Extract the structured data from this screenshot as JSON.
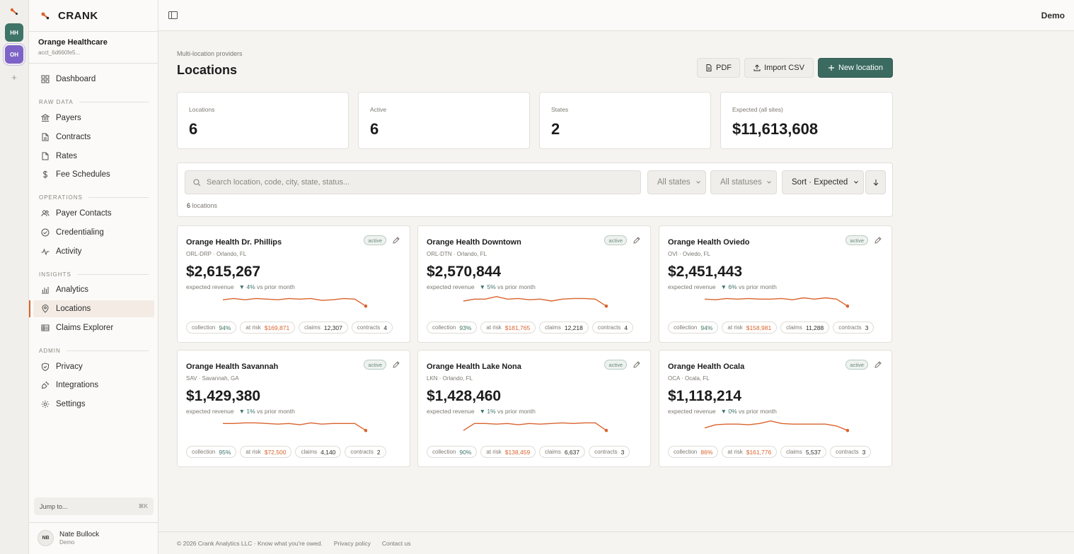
{
  "app": {
    "name": "CRANK",
    "accent": "#d9632c",
    "primary": "#3b6b60"
  },
  "rail": {
    "orgs": [
      {
        "initials": "HH",
        "color": "#3f7468"
      },
      {
        "initials": "OH",
        "color": "#7d63c7"
      }
    ],
    "add_label": "+"
  },
  "org": {
    "name": "Orange Healthcare",
    "id": "acct_6d660fe5..."
  },
  "nav": {
    "dashboard": "Dashboard",
    "sections": {
      "raw_data": "RAW DATA",
      "operations": "OPERATIONS",
      "insights": "INSIGHTS",
      "admin": "ADMIN"
    },
    "payers": "Payers",
    "contracts": "Contracts",
    "rates": "Rates",
    "fee_schedules": "Fee Schedules",
    "payer_contacts": "Payer Contacts",
    "credentialing": "Credentialing",
    "activity": "Activity",
    "analytics": "Analytics",
    "locations": "Locations",
    "claims_explorer": "Claims Explorer",
    "privacy": "Privacy",
    "integrations": "Integrations",
    "settings": "Settings",
    "active": "locations"
  },
  "jump": {
    "label": "Jump to...",
    "shortcut": "⌘K"
  },
  "user": {
    "initials": "NB",
    "name": "Nate Bullock",
    "role": "Demo"
  },
  "topbar": {
    "right_label": "Demo"
  },
  "page": {
    "breadcrumb": "Multi-location providers",
    "title": "Locations",
    "buttons": {
      "pdf": "PDF",
      "import": "Import CSV",
      "new": "New location"
    }
  },
  "stats": [
    {
      "label": "Locations",
      "value": "6"
    },
    {
      "label": "Active",
      "value": "6"
    },
    {
      "label": "States",
      "value": "2"
    },
    {
      "label": "Expected (all sites)",
      "value": "$11,613,608"
    }
  ],
  "filters": {
    "search_placeholder": "Search location, code, city, state, status...",
    "states": "All states",
    "statuses": "All statuses",
    "sort": "Sort · Expected",
    "count": "6",
    "count_suffix": "locations"
  },
  "labels": {
    "expected": "expected revenue",
    "vs": "vs prior month",
    "collection": "collection",
    "at_risk": "at risk",
    "claims": "claims",
    "contracts": "contracts"
  },
  "locations": [
    {
      "name": "Orange Health Dr. Phillips",
      "sub": "ORL-DRP · Orlando, FL",
      "status": "active",
      "expected": "$2,615,267",
      "delta": "▼ 4%",
      "collection": "94%",
      "collection_ok": true,
      "at_risk": "$169,871",
      "claims": "12,307",
      "contracts": "4",
      "trend": [
        6,
        7,
        6,
        7,
        6.5,
        6,
        7,
        6.5,
        7,
        5.5,
        6,
        7,
        6.5,
        1
      ]
    },
    {
      "name": "Orange Health Downtown",
      "sub": "ORL-DTN · Orlando, FL",
      "status": "active",
      "expected": "$2,570,844",
      "delta": "▼ 5%",
      "collection": "93%",
      "collection_ok": true,
      "at_risk": "$181,765",
      "claims": "12,218",
      "contracts": "4",
      "trend": [
        5,
        6.5,
        6.5,
        8.5,
        6.5,
        7,
        6,
        6.5,
        5,
        6.5,
        7,
        7,
        6.5,
        1
      ]
    },
    {
      "name": "Orange Health Oviedo",
      "sub": "OVI · Oviedo, FL",
      "status": "active",
      "expected": "$2,451,443",
      "delta": "▼ 6%",
      "collection": "94%",
      "collection_ok": true,
      "at_risk": "$158,981",
      "claims": "11,288",
      "contracts": "3",
      "trend": [
        6.5,
        6,
        7,
        6.5,
        7,
        6.5,
        6.5,
        7,
        6,
        7.5,
        6.5,
        7.5,
        6.5,
        1
      ]
    },
    {
      "name": "Orange Health Savannah",
      "sub": "SAV · Savannah, GA",
      "status": "active",
      "expected": "$1,429,380",
      "delta": "▼ 1%",
      "collection": "95%",
      "collection_ok": true,
      "at_risk": "$72,500",
      "claims": "4,140",
      "contracts": "2",
      "trend": [
        6.5,
        6.5,
        7,
        7,
        6.5,
        6,
        6.5,
        5.5,
        7,
        6,
        6.5,
        6.5,
        6.5,
        1
      ]
    },
    {
      "name": "Orange Health Lake Nona",
      "sub": "LKN · Orlando, FL",
      "status": "active",
      "expected": "$1,428,460",
      "delta": "▼ 1%",
      "collection": "90%",
      "collection_ok": true,
      "at_risk": "$138,459",
      "claims": "6,637",
      "contracts": "3",
      "trend": [
        1,
        6.5,
        6.5,
        6,
        6.5,
        5.5,
        6.5,
        6,
        6.5,
        7,
        6.5,
        7,
        7,
        1
      ]
    },
    {
      "name": "Orange Health Ocala",
      "sub": "OCA · Ocala, FL",
      "status": "active",
      "expected": "$1,118,214",
      "delta": "▼ 0%",
      "collection": "86%",
      "collection_ok": false,
      "at_risk": "$161,776",
      "claims": "5,537",
      "contracts": "3",
      "trend": [
        3,
        5.5,
        6,
        6,
        5.5,
        6.5,
        8.5,
        6.5,
        6,
        6,
        6,
        6,
        4.5,
        1
      ]
    }
  ],
  "footer": {
    "copyright": "© 2026 Crank Analytics LLC · Know what you're owed.",
    "privacy": "Privacy policy",
    "contact": "Contact us"
  }
}
